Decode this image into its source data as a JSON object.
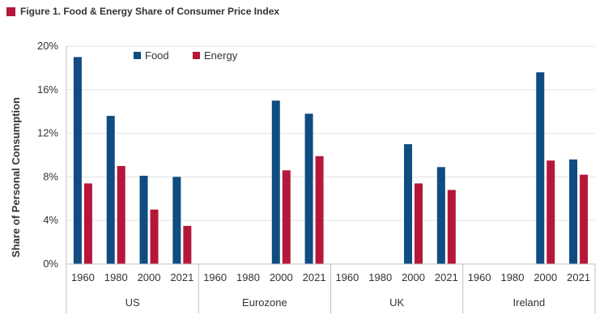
{
  "figure": {
    "title": "Figure 1. Food & Energy Share of Consumer Price Index",
    "marker_color": "#b5173a"
  },
  "chart_data": {
    "type": "bar",
    "ylabel": "Share of Personal Consumption",
    "ylim": [
      0,
      20
    ],
    "yticks": [
      0,
      4,
      8,
      12,
      16,
      20
    ],
    "ytick_labels": [
      "0%",
      "4%",
      "8%",
      "12%",
      "16%",
      "20%"
    ],
    "grid": true,
    "legend_position": "top-left",
    "groups": [
      "US",
      "Eurozone",
      "UK",
      "Ireland"
    ],
    "categories": [
      "1960",
      "1980",
      "2000",
      "2021"
    ],
    "series": [
      {
        "name": "Food",
        "color": "#0f4c81",
        "values": [
          [
            19.0,
            13.6,
            8.1,
            8.0
          ],
          [
            null,
            null,
            15.0,
            13.8
          ],
          [
            null,
            null,
            11.0,
            8.9
          ],
          [
            null,
            null,
            17.6,
            9.6
          ]
        ]
      },
      {
        "name": "Energy",
        "color": "#b5173a",
        "values": [
          [
            7.4,
            9.0,
            5.0,
            3.5
          ],
          [
            null,
            null,
            8.6,
            9.9
          ],
          [
            null,
            null,
            7.4,
            6.8
          ],
          [
            null,
            null,
            9.5,
            8.2
          ]
        ]
      }
    ]
  }
}
